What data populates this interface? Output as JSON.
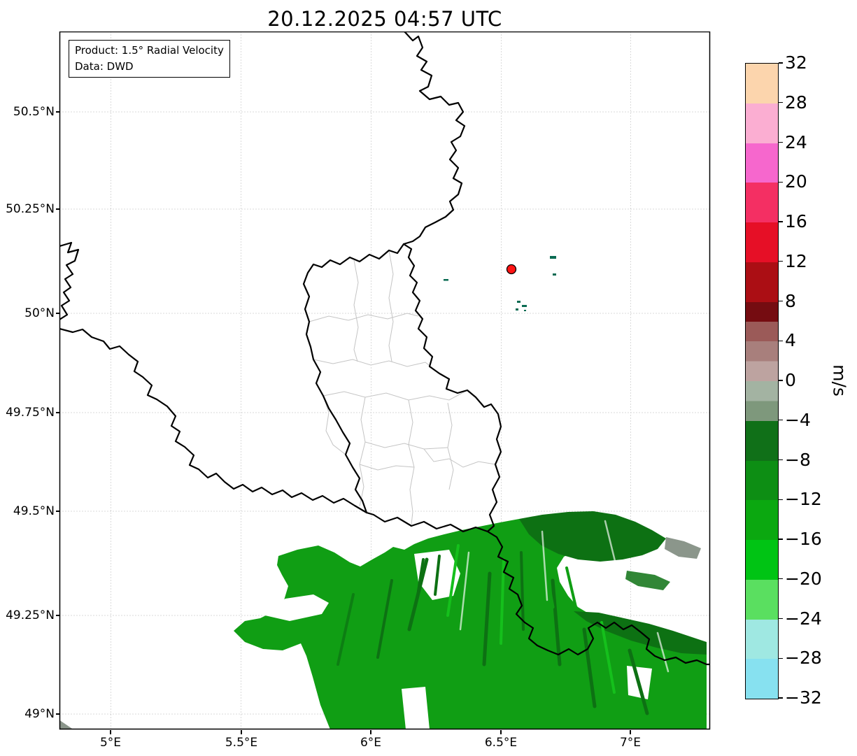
{
  "title": "20.12.2025 04:57 UTC",
  "info_box": {
    "product": "Product: 1.5° Radial Velocity",
    "source": "Data: DWD"
  },
  "axes": {
    "y_tick_labels": [
      "50.5°N",
      "50.25°N",
      "50°N",
      "49.75°N",
      "49.5°N",
      "49.25°N",
      "49°N"
    ],
    "x_tick_labels": [
      "5°E",
      "5.5°E",
      "6°E",
      "6.5°E",
      "7°E"
    ]
  },
  "colorbar": {
    "unit_label": "m/s",
    "tick_labels": [
      "32",
      "28",
      "24",
      "20",
      "16",
      "12",
      "8",
      "4",
      "0",
      "−4",
      "−8",
      "−12",
      "−16",
      "−20",
      "−24",
      "−28",
      "−32"
    ],
    "segments": [
      {
        "range": "28 to 32",
        "color": "#fcd5ad"
      },
      {
        "range": "24 to 28",
        "color": "#fbaed2"
      },
      {
        "range": "20 to 24",
        "color": "#f667cd"
      },
      {
        "range": "16 to 20",
        "color": "#f42f63"
      },
      {
        "range": "12 to 16",
        "color": "#e60f26"
      },
      {
        "range": "8 to 12",
        "color": "#ab0e14"
      },
      {
        "range": "4 to 8",
        "color": "#750c11",
        "color2": "#9b5a58"
      },
      {
        "range": "0 to 4",
        "color": "#a87f7c",
        "color2": "#bda3a0"
      },
      {
        "range": "−4 to 0",
        "color": "#a3b3a2",
        "color2": "#7e987c"
      },
      {
        "range": "−8 to −4",
        "color": "#107018"
      },
      {
        "range": "−12 to −8",
        "color": "#0d8e14"
      },
      {
        "range": "−16 to −12",
        "color": "#0ba810"
      },
      {
        "range": "−20 to −16",
        "color": "#00c414"
      },
      {
        "range": "−24 to −20",
        "color": "#5adf60"
      },
      {
        "range": "−28 to −24",
        "color": "#9fe8e2"
      },
      {
        "range": "−32 to −28",
        "color": "#87e1f0"
      }
    ]
  },
  "map": {
    "radar_marker_color": "#ff1414",
    "palette": {
      "echo_main": "#109e14",
      "echo_dark": "#0d7113",
      "echo_bright": "#15c01c",
      "echo_gray": "#8b968b",
      "speck": "#0a6b52",
      "country_border": "#000000",
      "region_border": "#c4c4c4",
      "grid": "#b5b5b5"
    }
  }
}
